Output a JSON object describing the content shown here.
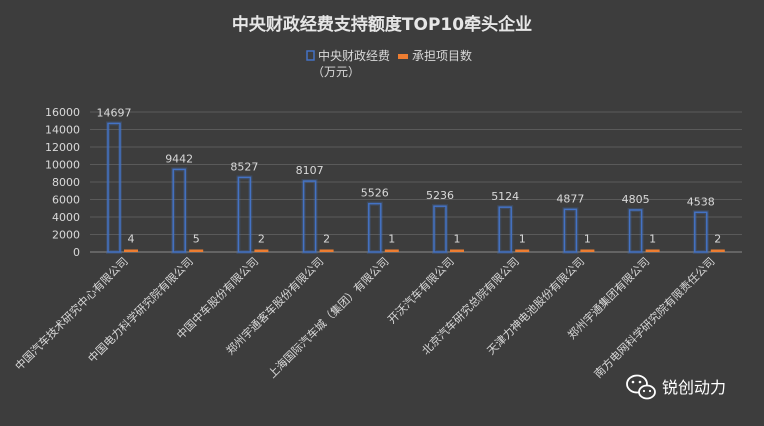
{
  "chart_data": {
    "type": "bar",
    "title": "中央财政经费支持额度TOP10牵头企业",
    "categories": [
      "中国汽车技术研究中心有限公司",
      "中国电力科学研究院有限公司",
      "中国中车股份有限公司",
      "郑州宇通客车股份有限公司",
      "上海国际汽车城（集团）有限公司",
      "开沃汽车有限公司",
      "北京汽车研究总院有限公司",
      "天津力神电池股份有限公司",
      "郑州宇通集团有限公司",
      "南方电网科学研究院有限责任公司"
    ],
    "series": [
      {
        "name": "中央财政经费（万元）",
        "values": [
          14697,
          9442,
          8527,
          8107,
          5526,
          5236,
          5124,
          4877,
          4805,
          4538
        ],
        "value_labels": [
          "14697",
          "9442",
          "8527",
          "8107",
          "5526",
          "5236",
          "5124",
          "4877",
          "4805",
          "4538"
        ]
      },
      {
        "name": "承担项目数",
        "values": [
          4,
          5,
          2,
          2,
          1,
          1,
          1,
          1,
          1,
          2
        ],
        "value_labels": [
          "4",
          "5",
          "2",
          "2",
          "1",
          "1",
          "1",
          "1",
          "1",
          "2"
        ]
      }
    ],
    "legend": {
      "items": [
        "中央财政经费",
        "承担项目数"
      ],
      "unit_line": "（万元）",
      "placement": "top-center"
    },
    "y_ticks": [
      "0",
      "2000",
      "4000",
      "6000",
      "8000",
      "10000",
      "12000",
      "14000",
      "16000"
    ],
    "ylim": [
      0,
      16000
    ],
    "grid": true,
    "colors": {
      "series1": "#4472c4",
      "series2": "#ed7d31",
      "background": "#3d3d3d",
      "text": "#d9d9d9"
    }
  },
  "watermark": {
    "text": "锐创动力",
    "icon": "wechat-icon"
  }
}
